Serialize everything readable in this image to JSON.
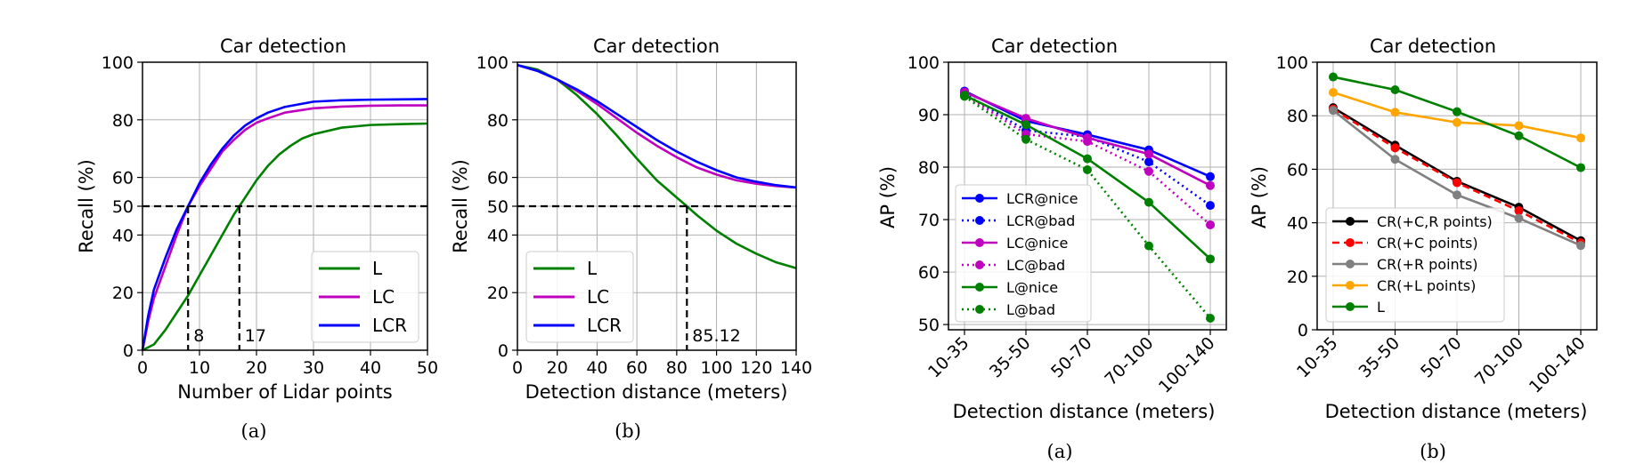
{
  "captions": [
    "(a)",
    "(b)",
    "(a)",
    "(b)"
  ],
  "chart_data": [
    {
      "type": "line",
      "title": "Car detection",
      "xlabel": "Number of Lidar points",
      "ylabel": "Recall (%)",
      "xlim": [
        0,
        50
      ],
      "ylim": [
        0,
        100
      ],
      "xticks": [
        0,
        10,
        20,
        30,
        40,
        50
      ],
      "yticks": [
        0,
        20,
        40,
        50,
        60,
        80,
        100
      ],
      "grid": true,
      "legend_position": "lower-right",
      "hline": 50,
      "vlines": [
        {
          "x": 8,
          "label": "8"
        },
        {
          "x": 17,
          "label": "17"
        }
      ],
      "series": [
        {
          "name": "L",
          "color": "#008000",
          "x": [
            0,
            2,
            4,
            6,
            8,
            10,
            12,
            14,
            16,
            17,
            18,
            20,
            22,
            24,
            26,
            28,
            30,
            35,
            40,
            45,
            50
          ],
          "y": [
            0,
            2,
            7,
            13,
            19,
            26,
            33,
            40,
            47,
            50,
            53,
            59,
            64,
            68,
            71,
            73.5,
            75,
            77.3,
            78.2,
            78.5,
            78.7
          ]
        },
        {
          "name": "LC",
          "color": "#bf00bf",
          "x": [
            0,
            1,
            2,
            4,
            6,
            8,
            10,
            12,
            14,
            16,
            18,
            20,
            22,
            25,
            30,
            35,
            40,
            45,
            50
          ],
          "y": [
            0,
            10,
            18,
            29,
            40,
            50,
            57,
            63,
            69,
            73,
            76.5,
            79,
            80.5,
            82.5,
            84,
            84.6,
            84.9,
            85,
            85
          ]
        },
        {
          "name": "LCR",
          "color": "#0000ff",
          "x": [
            0,
            1,
            2,
            4,
            6,
            8,
            10,
            12,
            14,
            16,
            18,
            20,
            22,
            25,
            30,
            35,
            40,
            45,
            50
          ],
          "y": [
            0,
            12,
            21,
            32,
            42,
            50,
            58,
            64.5,
            70,
            74.5,
            78,
            80.5,
            82.5,
            84.5,
            86.3,
            86.8,
            87,
            87.1,
            87.2
          ]
        }
      ]
    },
    {
      "type": "line",
      "title": "Car detection",
      "xlabel": "Detection distance (meters)",
      "ylabel": "Recall (%)",
      "xlim": [
        0,
        140
      ],
      "ylim": [
        0,
        100
      ],
      "xticks": [
        0,
        20,
        40,
        60,
        80,
        100,
        120,
        140
      ],
      "yticks": [
        0,
        20,
        40,
        50,
        60,
        80,
        100
      ],
      "grid": true,
      "legend_position": "lower-left",
      "hline": 50,
      "vlines": [
        {
          "x": 85.12,
          "label": "85.12"
        }
      ],
      "series": [
        {
          "name": "L",
          "color": "#008000",
          "x": [
            0,
            10,
            20,
            30,
            40,
            50,
            60,
            70,
            80,
            85.12,
            90,
            100,
            110,
            120,
            130,
            140
          ],
          "y": [
            99,
            97.5,
            94,
            88.5,
            82,
            74.5,
            66.5,
            59,
            53,
            50,
            47,
            41.5,
            37,
            33.5,
            30.5,
            28.5
          ]
        },
        {
          "name": "LC",
          "color": "#bf00bf",
          "x": [
            0,
            10,
            20,
            30,
            40,
            50,
            60,
            70,
            80,
            90,
            100,
            110,
            120,
            130,
            140
          ],
          "y": [
            99,
            97,
            94,
            90,
            85.5,
            80.5,
            75.5,
            71,
            67,
            63.5,
            61,
            59,
            57.8,
            57,
            56.5
          ]
        },
        {
          "name": "LCR",
          "color": "#0000ff",
          "x": [
            0,
            10,
            20,
            30,
            40,
            50,
            60,
            70,
            80,
            90,
            100,
            110,
            120,
            130,
            140
          ],
          "y": [
            99,
            97,
            94,
            90.5,
            86.5,
            82,
            77.5,
            73,
            69,
            65.5,
            62.5,
            60,
            58.5,
            57.3,
            56.5
          ]
        }
      ]
    },
    {
      "type": "line",
      "title": "Car detection",
      "xlabel": "Detection distance (meters)",
      "ylabel": "AP (%)",
      "categories": [
        "10-35",
        "35-50",
        "50-70",
        "70-100",
        "100-140"
      ],
      "ylim": [
        49,
        100
      ],
      "yticks": [
        50,
        60,
        70,
        80,
        90,
        100
      ],
      "grid": true,
      "legend_position": "lower-left",
      "series": [
        {
          "name": "LCR@nice",
          "color": "#0000ff",
          "dash": "solid",
          "values": [
            94.5,
            88.8,
            86.2,
            83.3,
            78.2
          ]
        },
        {
          "name": "LCR@bad",
          "color": "#0000ff",
          "dash": "dotted",
          "values": [
            94,
            87,
            85.8,
            81,
            72.7
          ]
        },
        {
          "name": "LC@nice",
          "color": "#bf00bf",
          "dash": "solid",
          "values": [
            94.3,
            89.3,
            85.6,
            82.5,
            76.5
          ]
        },
        {
          "name": "LC@bad",
          "color": "#bf00bf",
          "dash": "dotted",
          "values": [
            93.8,
            86.3,
            84.9,
            79.2,
            69
          ]
        },
        {
          "name": "L@nice",
          "color": "#008000",
          "dash": "solid",
          "values": [
            93.7,
            88.1,
            81.6,
            73.3,
            62.5
          ]
        },
        {
          "name": "L@bad",
          "color": "#008000",
          "dash": "dotted",
          "values": [
            93.5,
            85.3,
            79.5,
            65,
            51.2
          ]
        }
      ]
    },
    {
      "type": "line",
      "title": "Car detection",
      "xlabel": "Detection distance (meters)",
      "ylabel": "AP (%)",
      "categories": [
        "10-35",
        "35-50",
        "50-70",
        "70-100",
        "100-140"
      ],
      "ylim": [
        0,
        100
      ],
      "yticks": [
        0,
        20,
        40,
        60,
        80,
        100
      ],
      "grid": true,
      "legend_position": "lower-left",
      "series": [
        {
          "name": "CR(+C,R points)",
          "color": "#000000",
          "dash": "solid",
          "values": [
            83,
            69,
            55.5,
            45.8,
            33.3
          ]
        },
        {
          "name": "CR(+C points)",
          "color": "#ff0000",
          "dash": "dashed",
          "values": [
            82.5,
            68,
            55,
            44.5,
            32.5
          ]
        },
        {
          "name": "CR(+R points)",
          "color": "#808080",
          "dash": "solid",
          "values": [
            82,
            63.7,
            50.4,
            41.7,
            31.5
          ]
        },
        {
          "name": "CR(+L points)",
          "color": "#ffa500",
          "dash": "solid",
          "values": [
            88.7,
            81.3,
            77.5,
            76.3,
            71.7
          ]
        },
        {
          "name": "L",
          "color": "#008000",
          "dash": "solid",
          "values": [
            94.5,
            89.7,
            81.5,
            72.5,
            60.6
          ]
        }
      ]
    }
  ]
}
